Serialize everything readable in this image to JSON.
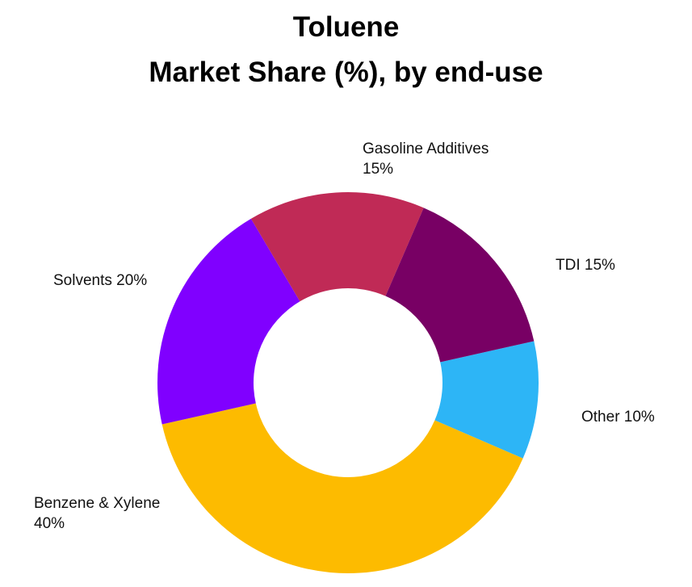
{
  "chart_data": {
    "type": "pie",
    "variant": "donut",
    "title": "Toluene",
    "subtitle": "Market Share (%), by end-use",
    "slices": [
      {
        "label": "Other",
        "value": 10,
        "display": "Other 10%",
        "color": "#2db5f6"
      },
      {
        "label": "Benzene & Xylene",
        "value": 40,
        "display": [
          "Benzene & Xylene",
          "40%"
        ],
        "color": "#fdbb00"
      },
      {
        "label": "Solvents",
        "value": 20,
        "display": "Solvents 20%",
        "color": "#8000ff"
      },
      {
        "label": "Gasoline Additives",
        "value": 15,
        "display": [
          "Gasoline Additives",
          "15%"
        ],
        "color": "#c02a56"
      },
      {
        "label": "TDI",
        "value": 15,
        "display": "TDI 15%",
        "color": "#780064"
      }
    ],
    "legend": "none"
  }
}
